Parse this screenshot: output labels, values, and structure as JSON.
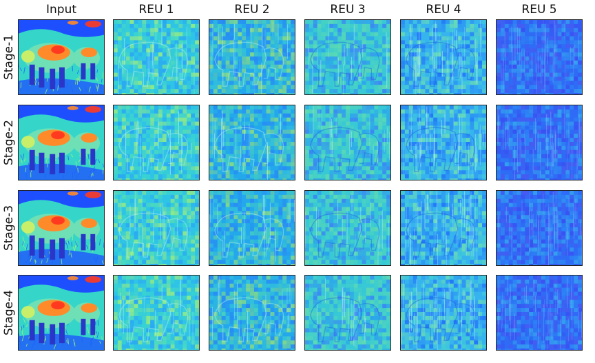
{
  "columns": [
    "Input",
    "REU 1",
    "REU 2",
    "REU 3",
    "REU 4",
    "REU 5"
  ],
  "rows": [
    "Stage-1",
    "Stage-2",
    "Stage-3",
    "Stage-4"
  ],
  "colors": {
    "input_bg": "#35d6c9",
    "input_sky": "#1e4fff",
    "input_warm": "#ff8a2a",
    "input_hot": "#ff3a1f",
    "input_body": "#6fe0b5",
    "input_legs": "#2a36c8",
    "frame": "#222222"
  },
  "palettes": [
    [
      "#2fc4e6",
      "#3bd6cc",
      "#52e0b4",
      "#2aa4f4",
      "#9cf07a"
    ],
    [
      "#24a8ec",
      "#2a86f6",
      "#36c6d8",
      "#4cd6b8",
      "#8fe07e"
    ],
    [
      "#38c8d6",
      "#4ad4c0",
      "#2a9ef0",
      "#62dcae",
      "#3b7ef8"
    ],
    [
      "#37b4ee",
      "#2b92f4",
      "#44cfd2",
      "#1f6ffa",
      "#6ee0b0"
    ],
    [
      "#2f6cf6",
      "#3b4ef2",
      "#2d8af5",
      "#4b58f0",
      "#36a8ee"
    ]
  ]
}
